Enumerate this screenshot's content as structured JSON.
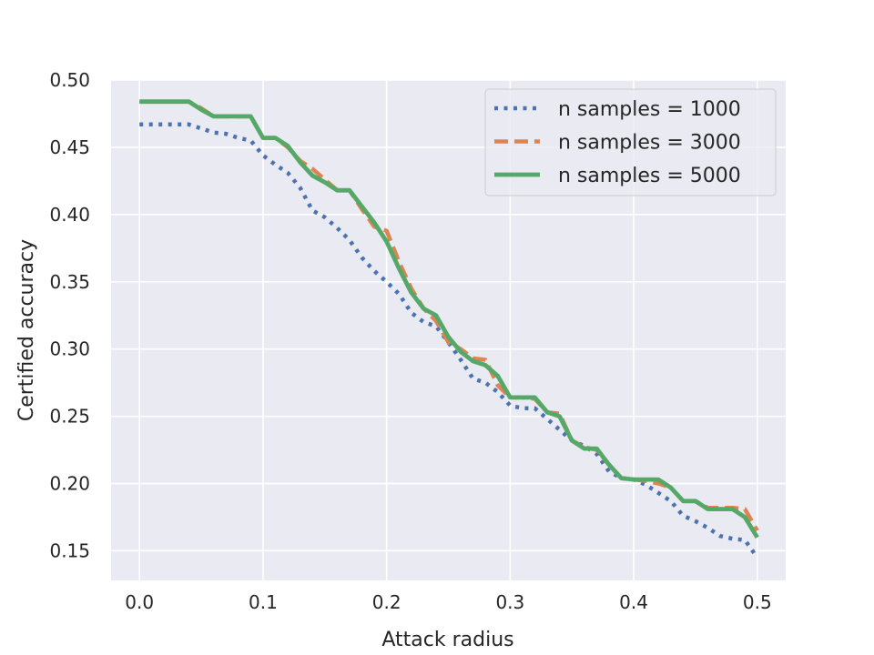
{
  "chart_data": {
    "type": "line",
    "xlabel": "Attack radius",
    "ylabel": "Certified accuracy",
    "xlim": [
      -0.023,
      0.523
    ],
    "ylim": [
      0.128,
      0.5
    ],
    "xticks": [
      0.0,
      0.1,
      0.2,
      0.3,
      0.4,
      0.5
    ],
    "xtick_labels": [
      "0.0",
      "0.1",
      "0.2",
      "0.3",
      "0.4",
      "0.5"
    ],
    "yticks": [
      0.15,
      0.2,
      0.25,
      0.3,
      0.35,
      0.4,
      0.45,
      0.5
    ],
    "ytick_labels": [
      "0.15",
      "0.20",
      "0.25",
      "0.30",
      "0.35",
      "0.40",
      "0.45",
      "0.50"
    ],
    "grid": true,
    "background": "#eaeaf2",
    "legend_position": "top-right",
    "series": [
      {
        "name": "n samples = 1000",
        "color": "#4c72b0",
        "style": "dotted",
        "x": [
          0.0,
          0.01,
          0.02,
          0.03,
          0.04,
          0.05,
          0.06,
          0.07,
          0.08,
          0.09,
          0.1,
          0.11,
          0.12,
          0.13,
          0.14,
          0.15,
          0.16,
          0.17,
          0.18,
          0.19,
          0.2,
          0.21,
          0.22,
          0.23,
          0.24,
          0.25,
          0.26,
          0.27,
          0.28,
          0.29,
          0.3,
          0.31,
          0.32,
          0.33,
          0.34,
          0.35,
          0.36,
          0.37,
          0.38,
          0.39,
          0.4,
          0.41,
          0.42,
          0.43,
          0.44,
          0.45,
          0.46,
          0.47,
          0.48,
          0.49,
          0.5
        ],
        "y": [
          0.467,
          0.467,
          0.467,
          0.467,
          0.467,
          0.464,
          0.461,
          0.46,
          0.457,
          0.455,
          0.444,
          0.437,
          0.431,
          0.42,
          0.403,
          0.398,
          0.39,
          0.381,
          0.368,
          0.358,
          0.35,
          0.341,
          0.327,
          0.32,
          0.317,
          0.305,
          0.292,
          0.278,
          0.275,
          0.268,
          0.258,
          0.256,
          0.256,
          0.248,
          0.24,
          0.232,
          0.228,
          0.222,
          0.209,
          0.204,
          0.203,
          0.199,
          0.193,
          0.187,
          0.176,
          0.172,
          0.167,
          0.161,
          0.159,
          0.158,
          0.145
        ]
      },
      {
        "name": "n samples = 3000",
        "color": "#dd8452",
        "style": "dashed",
        "x": [
          0.0,
          0.01,
          0.02,
          0.03,
          0.04,
          0.05,
          0.06,
          0.07,
          0.08,
          0.09,
          0.1,
          0.11,
          0.12,
          0.13,
          0.14,
          0.15,
          0.16,
          0.17,
          0.18,
          0.19,
          0.2,
          0.21,
          0.22,
          0.23,
          0.24,
          0.25,
          0.26,
          0.27,
          0.28,
          0.29,
          0.3,
          0.31,
          0.32,
          0.33,
          0.34,
          0.35,
          0.36,
          0.37,
          0.38,
          0.39,
          0.4,
          0.41,
          0.42,
          0.43,
          0.44,
          0.45,
          0.46,
          0.47,
          0.48,
          0.49,
          0.5
        ],
        "y": [
          0.484,
          0.484,
          0.484,
          0.484,
          0.484,
          0.479,
          0.473,
          0.473,
          0.473,
          0.473,
          0.457,
          0.457,
          0.45,
          0.44,
          0.434,
          0.426,
          0.418,
          0.418,
          0.404,
          0.391,
          0.388,
          0.365,
          0.345,
          0.33,
          0.321,
          0.305,
          0.3,
          0.293,
          0.292,
          0.273,
          0.264,
          0.264,
          0.263,
          0.253,
          0.252,
          0.232,
          0.227,
          0.225,
          0.214,
          0.204,
          0.203,
          0.202,
          0.2,
          0.197,
          0.187,
          0.187,
          0.182,
          0.182,
          0.182,
          0.181,
          0.165
        ]
      },
      {
        "name": "n samples = 5000",
        "color": "#55a868",
        "style": "solid",
        "x": [
          0.0,
          0.01,
          0.02,
          0.03,
          0.04,
          0.05,
          0.06,
          0.07,
          0.08,
          0.09,
          0.1,
          0.11,
          0.12,
          0.13,
          0.14,
          0.15,
          0.16,
          0.17,
          0.18,
          0.19,
          0.2,
          0.21,
          0.22,
          0.23,
          0.24,
          0.25,
          0.26,
          0.27,
          0.28,
          0.29,
          0.3,
          0.31,
          0.32,
          0.33,
          0.34,
          0.35,
          0.36,
          0.37,
          0.38,
          0.39,
          0.4,
          0.41,
          0.42,
          0.43,
          0.44,
          0.45,
          0.46,
          0.47,
          0.48,
          0.49,
          0.5
        ],
        "y": [
          0.484,
          0.484,
          0.484,
          0.484,
          0.484,
          0.478,
          0.473,
          0.473,
          0.473,
          0.473,
          0.457,
          0.457,
          0.451,
          0.439,
          0.429,
          0.424,
          0.418,
          0.418,
          0.406,
          0.394,
          0.38,
          0.36,
          0.342,
          0.33,
          0.325,
          0.309,
          0.298,
          0.291,
          0.288,
          0.28,
          0.264,
          0.264,
          0.264,
          0.253,
          0.25,
          0.232,
          0.226,
          0.226,
          0.214,
          0.204,
          0.203,
          0.203,
          0.203,
          0.197,
          0.187,
          0.187,
          0.181,
          0.181,
          0.181,
          0.175,
          0.16
        ]
      }
    ]
  }
}
